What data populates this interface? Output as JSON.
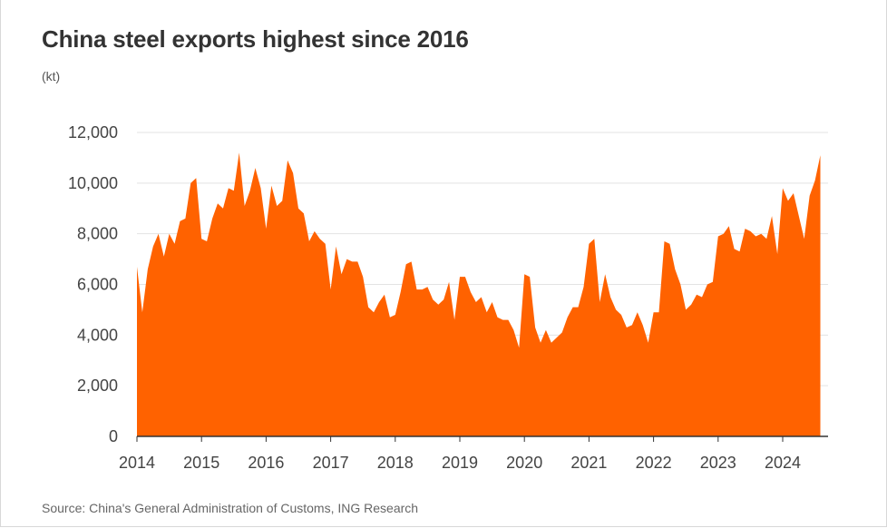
{
  "title": "China steel exports highest since 2016",
  "unit": "(kt)",
  "source": "Source: China's General Administration of Customs, ING Research",
  "colors": {
    "area": "#ff6200",
    "grid": "#e3e3e3",
    "axis": "#333333"
  },
  "chart_data": {
    "type": "area",
    "title": "China steel exports highest since 2016",
    "ylabel": "(kt)",
    "ylim": [
      0,
      12000
    ],
    "yticks": [
      "0",
      "2,000",
      "4,000",
      "6,000",
      "8,000",
      "10,000",
      "12,000"
    ],
    "xticks": [
      "2014",
      "2015",
      "2016",
      "2017",
      "2018",
      "2019",
      "2020",
      "2021",
      "2022",
      "2023",
      "2024"
    ],
    "grid": true,
    "legend": "none",
    "x_start": "2014-01",
    "frequency": "monthly",
    "series": [
      {
        "values": [
          6700,
          4900,
          6600,
          7500,
          8000,
          7100,
          8000,
          7600,
          8500,
          8600,
          10000,
          10200,
          7800,
          7700,
          8600,
          9200,
          9000,
          9800,
          9700,
          11200,
          9100,
          9700,
          10600,
          9800,
          8200,
          9900,
          9100,
          9300,
          10900,
          10400,
          9000,
          8800,
          7700,
          8100,
          7800,
          7600,
          5800,
          7500,
          6400,
          7000,
          6900,
          6900,
          6300,
          5100,
          4900,
          5300,
          5600,
          4700,
          4800,
          5700,
          6800,
          6900,
          5800,
          5800,
          5900,
          5400,
          5200,
          5400,
          6100,
          4600,
          6300,
          6300,
          5700,
          5300,
          5500,
          4900,
          5300,
          4700,
          4600,
          4600,
          4200,
          3500,
          6400,
          6300,
          4300,
          3700,
          4200,
          3700,
          3900,
          4100,
          4700,
          5100,
          5100,
          5900,
          7600,
          7800,
          5300,
          6400,
          5500,
          5000,
          4800,
          4300,
          4400,
          4900,
          4400,
          3700,
          4900,
          4900,
          7700,
          7600,
          6600,
          6000,
          5000,
          5200,
          5600,
          5500,
          6000,
          6100,
          7900,
          8000,
          8300,
          7400,
          7300,
          8200,
          8100,
          7900,
          8000,
          7800,
          8700,
          7200,
          9800,
          9300,
          9600,
          8700,
          7800,
          9500,
          10100,
          11100
        ]
      }
    ]
  }
}
